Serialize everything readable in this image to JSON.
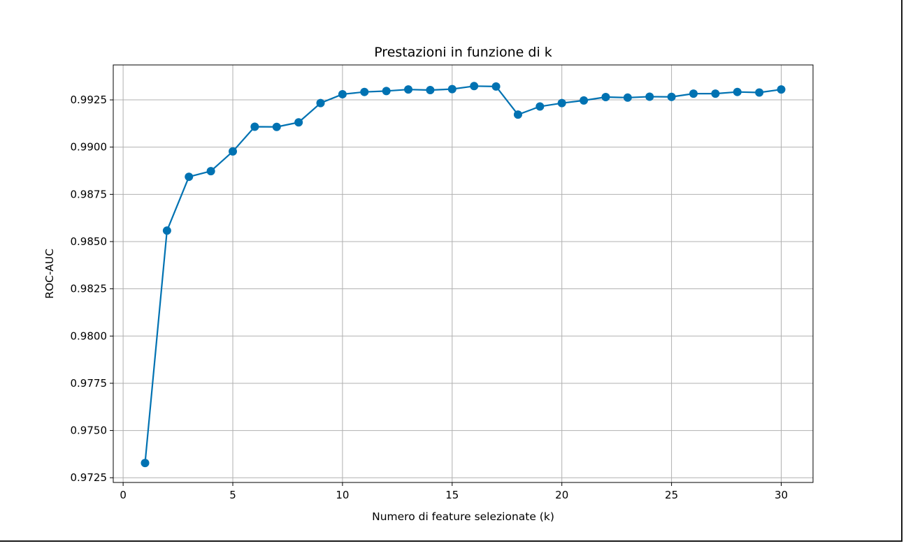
{
  "chart_data": {
    "type": "line",
    "title": "Prestazioni in funzione di k",
    "xlabel": "Numero di feature selezionate (k)",
    "ylabel": "ROC-AUC",
    "xlim": [
      -0.45,
      31.45
    ],
    "ylim": [
      0.97225,
      0.99435
    ],
    "xticks": [
      0,
      5,
      10,
      15,
      20,
      25,
      30
    ],
    "xtick_labels": [
      "0",
      "5",
      "10",
      "15",
      "20",
      "25",
      "30"
    ],
    "yticks": [
      0.9725,
      0.975,
      0.9775,
      0.98,
      0.9825,
      0.985,
      0.9875,
      0.99,
      0.9925
    ],
    "ytick_labels": [
      "0.9725",
      "0.9750",
      "0.9775",
      "0.9800",
      "0.9825",
      "0.9850",
      "0.9875",
      "0.9900",
      "0.9925"
    ],
    "grid": true,
    "marker": "circle",
    "color": "#0072b2",
    "x": [
      1,
      2,
      3,
      4,
      5,
      6,
      7,
      8,
      9,
      10,
      11,
      12,
      13,
      14,
      15,
      16,
      17,
      18,
      19,
      20,
      21,
      22,
      23,
      24,
      25,
      26,
      27,
      28,
      29,
      30
    ],
    "y": [
      0.97328,
      0.98558,
      0.98843,
      0.98873,
      0.98977,
      0.99108,
      0.99107,
      0.99131,
      0.99233,
      0.9928,
      0.99292,
      0.99297,
      0.99305,
      0.99302,
      0.99307,
      0.99323,
      0.99321,
      0.99172,
      0.99215,
      0.99233,
      0.99247,
      0.99265,
      0.99262,
      0.99267,
      0.99266,
      0.99283,
      0.99283,
      0.99292,
      0.99289,
      0.99305
    ]
  }
}
